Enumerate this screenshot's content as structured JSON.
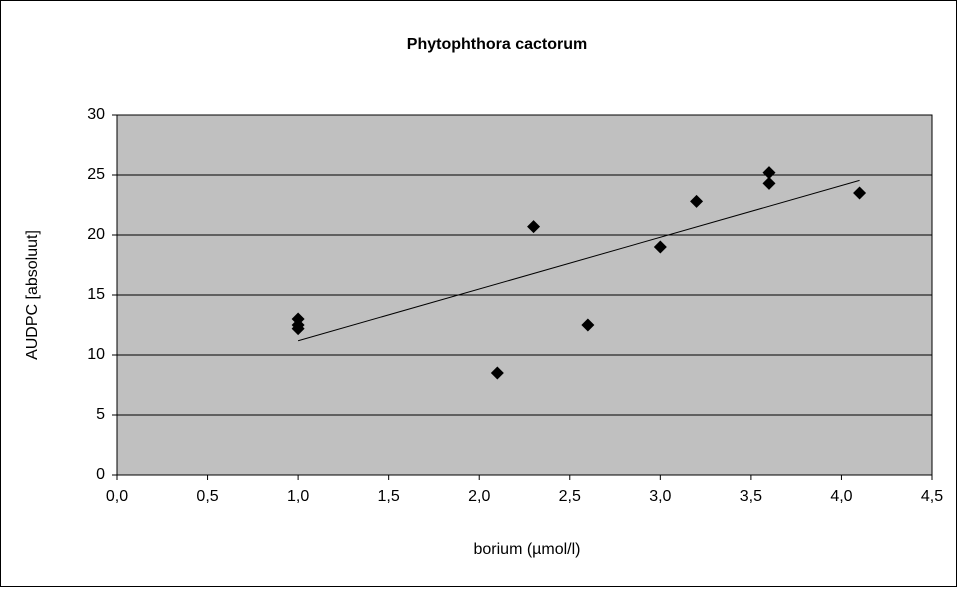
{
  "chart_data": {
    "type": "scatter",
    "title": "Phytophthora cactorum",
    "x_label": "borium (µmol/l)",
    "y_label": "AUDPC [absoluut]",
    "x": [
      1.0,
      1.0,
      1.0,
      2.1,
      2.3,
      2.6,
      3.0,
      3.2,
      3.6,
      3.6,
      4.1
    ],
    "values": [
      13.0,
      12.5,
      12.2,
      8.5,
      20.7,
      12.5,
      19.0,
      22.8,
      25.2,
      24.3,
      23.5
    ],
    "color": "#000000",
    "plot_background": "#c0c0c0",
    "trendline": "linear",
    "xlim": [
      0,
      4.5
    ],
    "xticks": [
      {
        "value": 0,
        "label": "0,0"
      },
      {
        "value": 0.5,
        "label": "0,5"
      },
      {
        "value": 1,
        "label": "1,0"
      },
      {
        "value": 1.5,
        "label": "1,5"
      },
      {
        "value": 2,
        "label": "2,0"
      },
      {
        "value": 2.5,
        "label": "2,5"
      },
      {
        "value": 3,
        "label": "3,0"
      },
      {
        "value": 3.5,
        "label": "3,5"
      },
      {
        "value": 4,
        "label": "4,0"
      },
      {
        "value": 4.5,
        "label": "4,5"
      }
    ],
    "ylim": [
      0,
      30
    ],
    "yticks": [
      0,
      5,
      10,
      15,
      20,
      25,
      30
    ],
    "grid": true
  }
}
